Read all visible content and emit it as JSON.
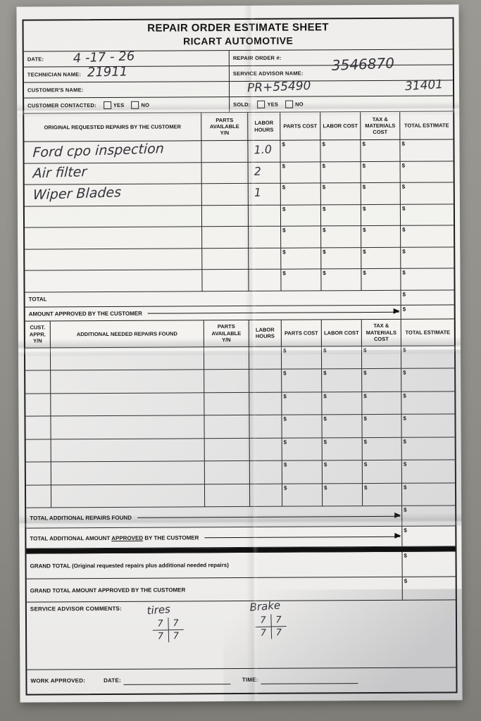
{
  "form": {
    "title_line1": "REPAIR ORDER ESTIMATE SHEET",
    "title_line2": "RICART AUTOMOTIVE",
    "currency_symbol": "$",
    "header": {
      "date_label": "DATE:",
      "date_value": "4 -17 - 26",
      "technician_label": "TECHNICIAN NAME:",
      "technician_value": "21911",
      "customer_label": "CUSTOMER'S NAME:",
      "contacted_label": "CUSTOMER CONTACTED:",
      "repair_order_label": "REPAIR ORDER #:",
      "repair_order_value": "3546870",
      "advisor_label": "SERVICE ADVISOR NAME:",
      "advisor_handwriting_left": "PR+55490",
      "advisor_handwriting_right": "31401",
      "sold_label": "SOLD:",
      "yes_label": "YES",
      "no_label": "NO"
    },
    "table1": {
      "headers": [
        "ORIGINAL REQUESTED REPAIRS BY THE CUSTOMER",
        "PARTS\nAVAILABLE\nY/N",
        "LABOR\nHOURS",
        "PARTS COST",
        "LABOR COST",
        "TAX &\nMATERIALS\nCOST",
        "TOTAL ESTIMATE"
      ],
      "rows": [
        {
          "description": "Ford cpo inspection",
          "labor_hours": "1.0"
        },
        {
          "description": "Air filter",
          "labor_hours": "2"
        },
        {
          "description": "Wiper Blades",
          "labor_hours": "1"
        },
        {
          "description": "",
          "labor_hours": ""
        },
        {
          "description": "",
          "labor_hours": ""
        },
        {
          "description": "",
          "labor_hours": ""
        },
        {
          "description": "",
          "labor_hours": ""
        }
      ],
      "total_label": "TOTAL",
      "approved_label": "AMOUNT APPROVED BY THE CUSTOMER"
    },
    "table2": {
      "headers": [
        "CUST.\nAPPR.\nY/N",
        "ADDITIONAL NEEDED REPAIRS FOUND",
        "PARTS\nAVAILABLE\nY/N",
        "LABOR\nHOURS",
        "PARTS COST",
        "LABOR COST",
        "TAX &\nMATERIALS\nCOST",
        "TOTAL ESTIMATE"
      ],
      "empty_row_count": 7,
      "total_additional_label": "TOTAL ADDITIONAL REPAIRS FOUND",
      "approved_pre": "TOTAL ADDITIONAL AMOUNT ",
      "approved_underlined": "APPROVED",
      "approved_post": " BY THE CUSTOMER"
    },
    "grand": {
      "grand_total_label": "GRAND TOTAL (Original requested repairs plus additional needed repairs)",
      "grand_approved_label": "GRAND TOTAL AMOUNT APPROVED BY THE CUSTOMER"
    },
    "comments": {
      "label": "SERVICE ADVISOR COMMENTS:",
      "tires_label": "tires",
      "tires_values": [
        "7",
        "7",
        "7",
        "7"
      ],
      "brake_label": "Brake",
      "brake_values": [
        "7",
        "7",
        "7",
        "7"
      ]
    },
    "footer": {
      "work_approved_label": "WORK APPROVED:",
      "date_label": "DATE:",
      "time_label": "TIME:"
    }
  }
}
